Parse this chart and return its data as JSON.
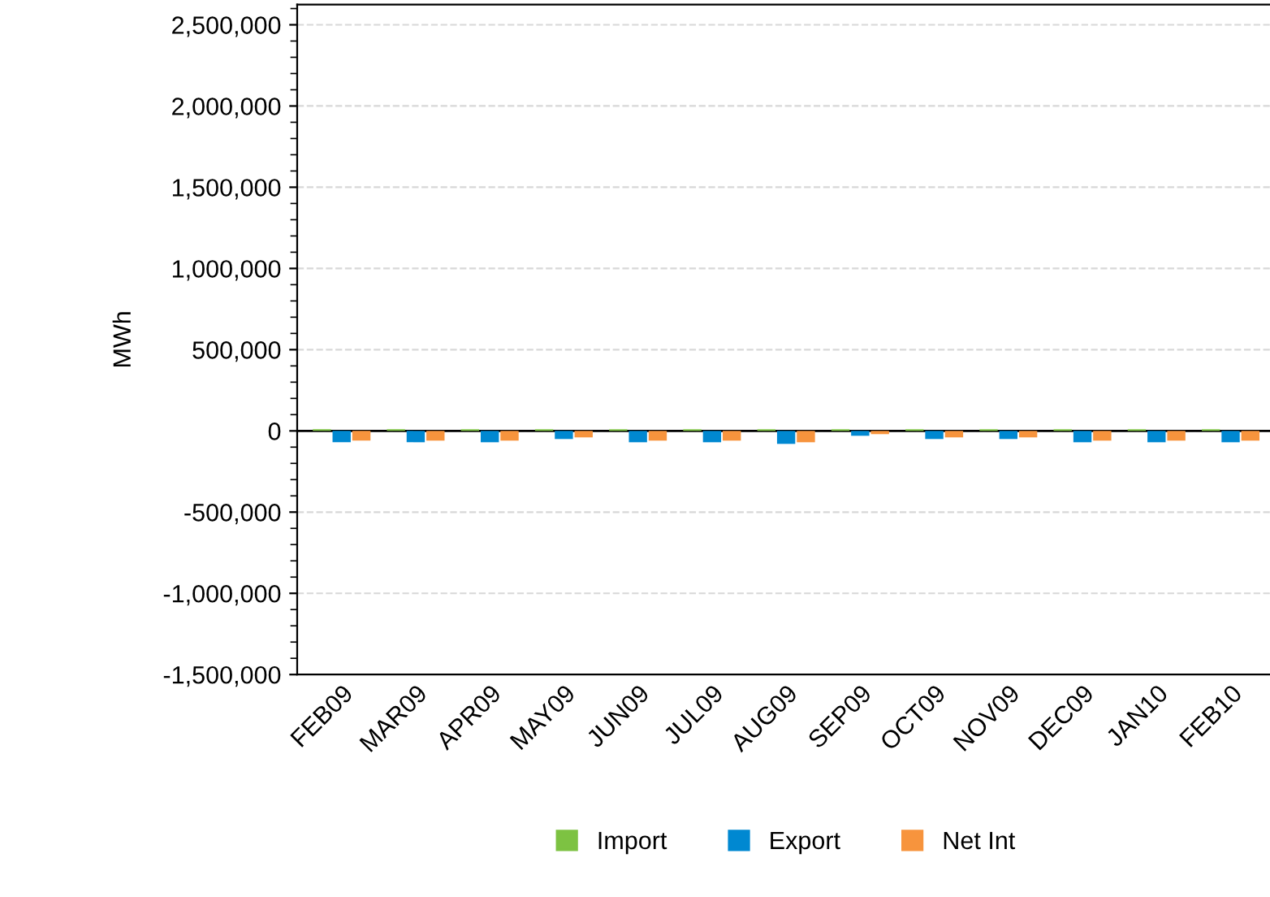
{
  "chart_data": {
    "type": "bar",
    "ylabel": "MWh",
    "categories": [
      "FEB09",
      "MAR09",
      "APR09",
      "MAY09",
      "JUN09",
      "JUL09",
      "AUG09",
      "SEP09",
      "OCT09",
      "NOV09",
      "DEC09",
      "JAN10",
      "FEB10"
    ],
    "series": [
      {
        "name": "Import",
        "color": "#7dc242",
        "values": [
          10000,
          10000,
          10000,
          10000,
          10000,
          10000,
          10000,
          10000,
          10000,
          10000,
          10000,
          10000,
          10000
        ]
      },
      {
        "name": "Export",
        "color": "#0088d1",
        "values": [
          -70000,
          -70000,
          -70000,
          -50000,
          -70000,
          -70000,
          -80000,
          -30000,
          -50000,
          -50000,
          -70000,
          -70000,
          -70000
        ]
      },
      {
        "name": "Net Int",
        "color": "#f7943d",
        "values": [
          -60000,
          -60000,
          -60000,
          -40000,
          -60000,
          -60000,
          -70000,
          -20000,
          -40000,
          -40000,
          -60000,
          -60000,
          -60000
        ]
      }
    ],
    "ylim": [
      -1500000,
      2625000
    ],
    "yticks": [
      {
        "value": -1500000,
        "label": "-1,500,000"
      },
      {
        "value": -1000000,
        "label": "-1,000,000"
      },
      {
        "value": -500000,
        "label": "-500,000"
      },
      0,
      {
        "value": 500000,
        "label": "500,000"
      },
      {
        "value": 1000000,
        "label": "1,000,000"
      },
      {
        "value": 1500000,
        "label": "1,500,000"
      },
      {
        "value": 2000000,
        "label": "2,000,000"
      },
      {
        "value": 2500000,
        "label": "2,500,000"
      }
    ],
    "grid": "y",
    "legend": "bottom"
  }
}
